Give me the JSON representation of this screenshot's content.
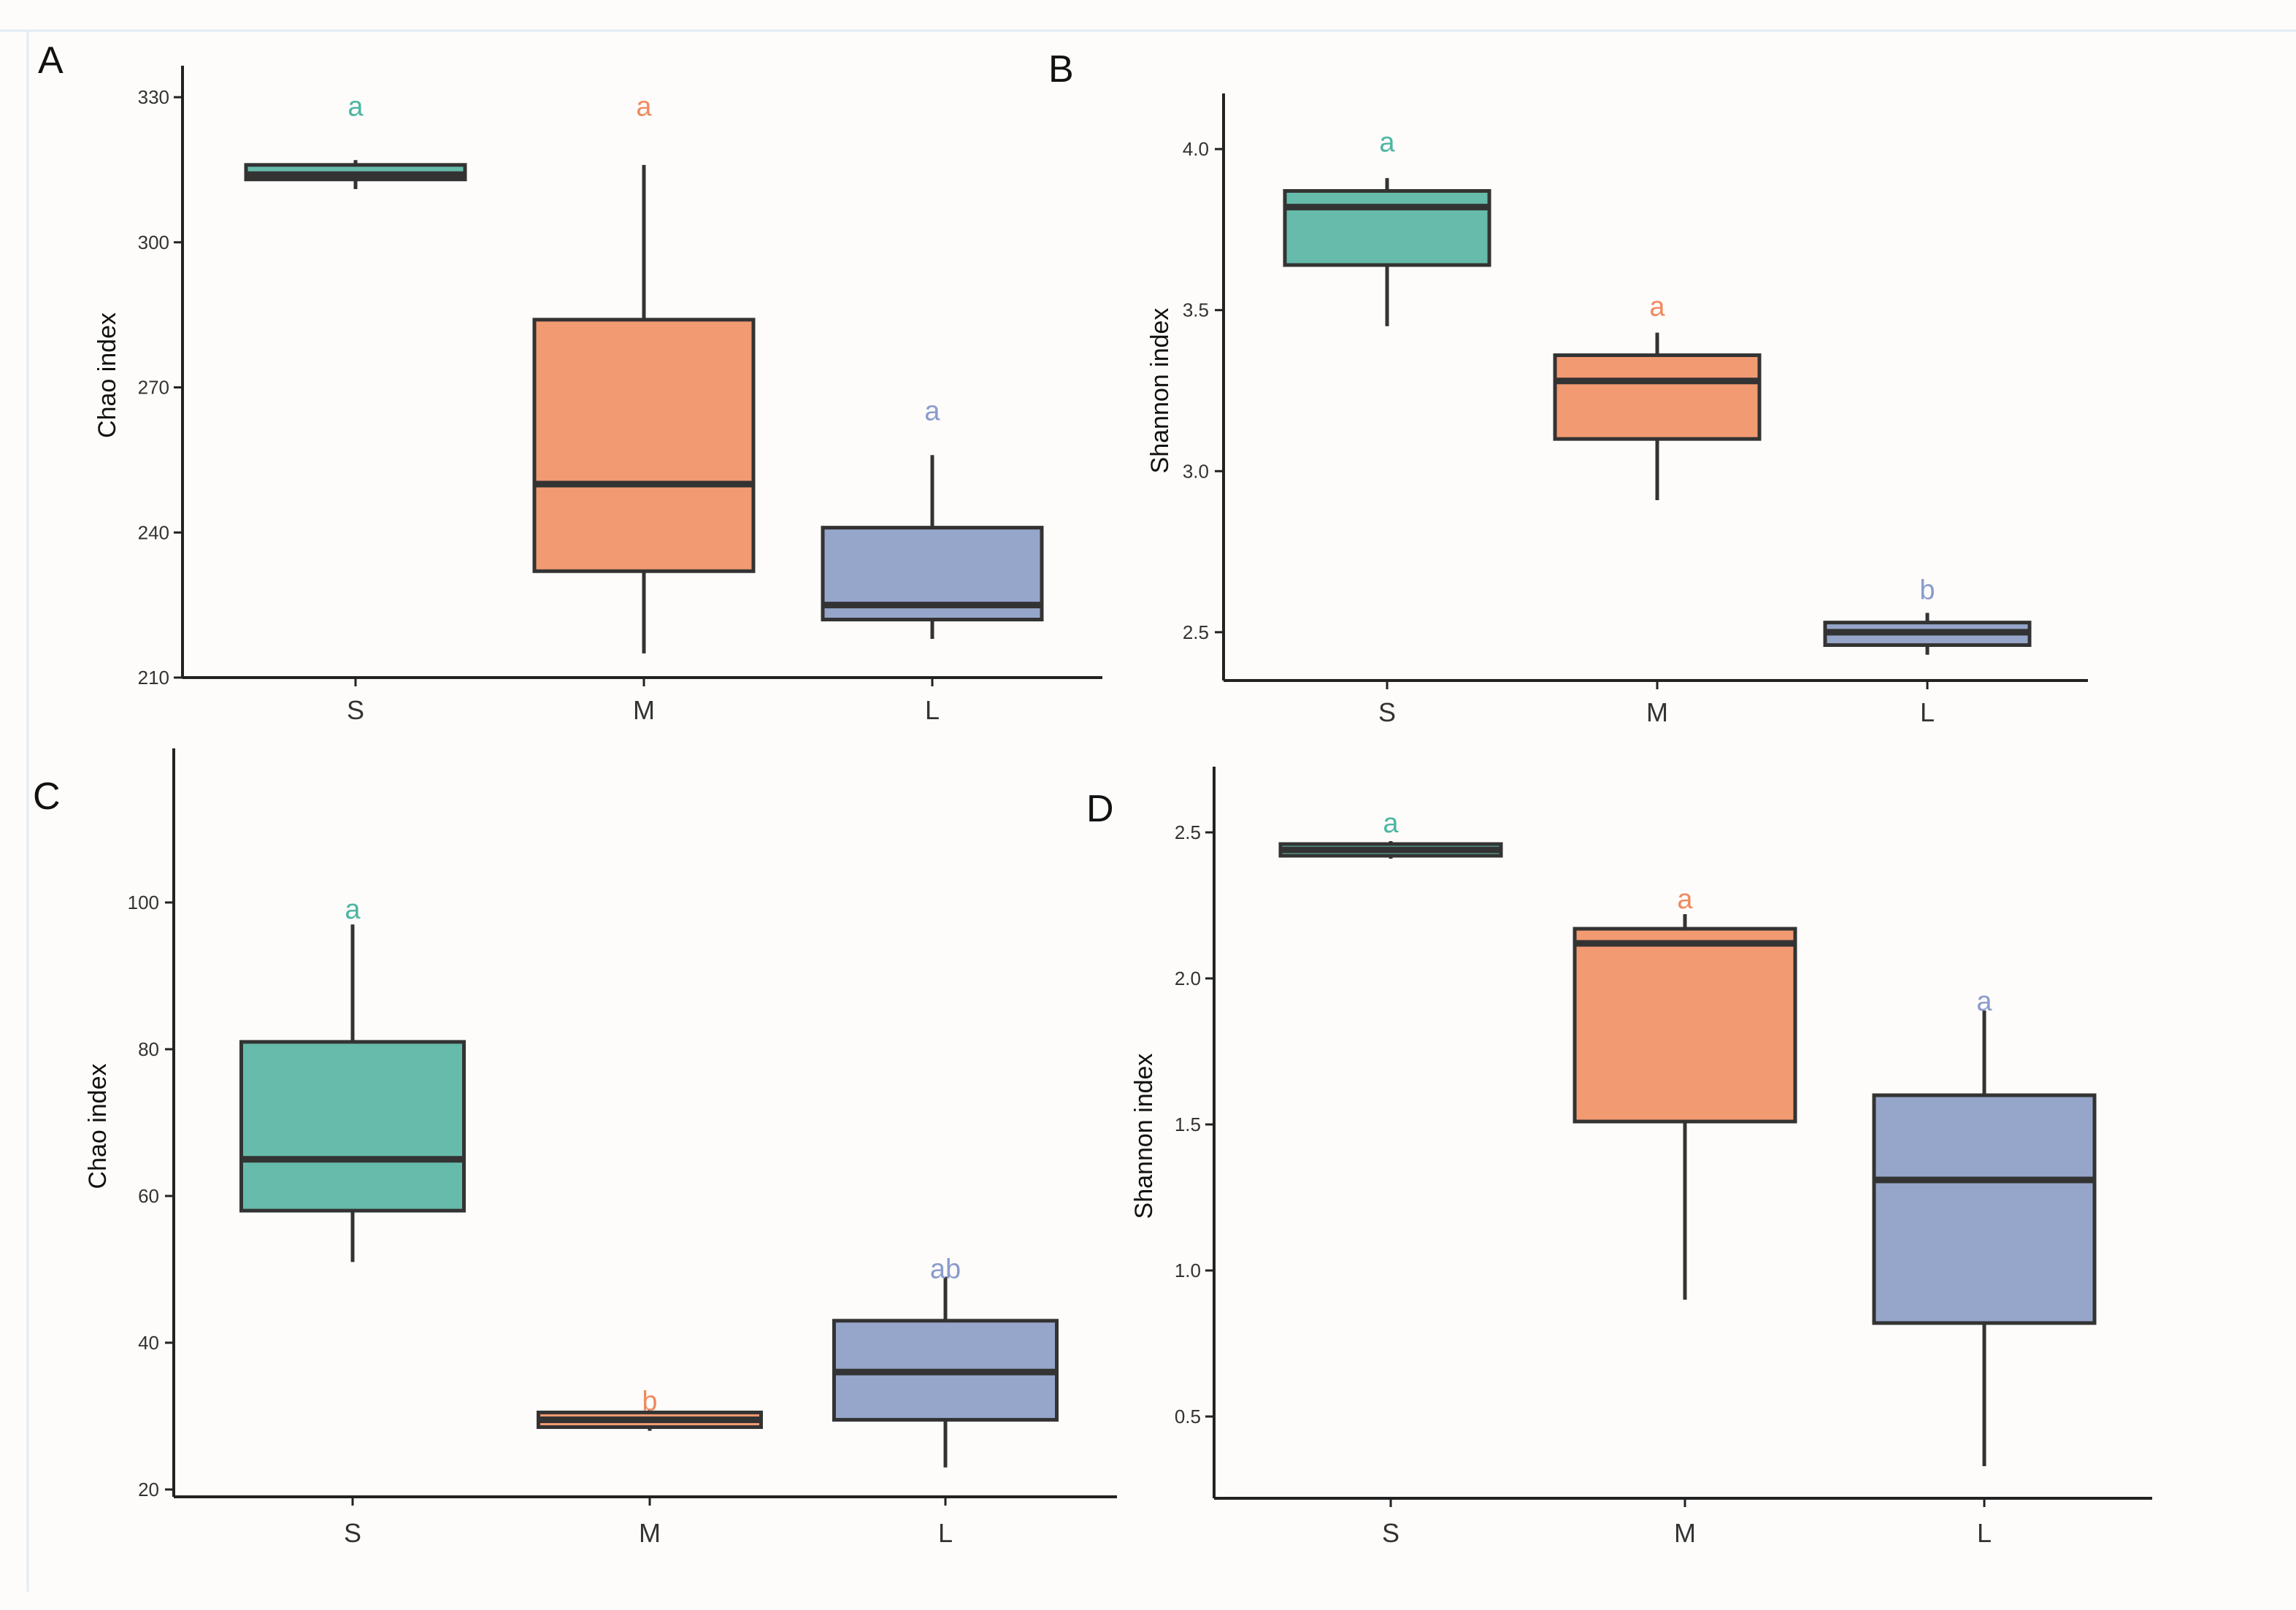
{
  "colors": {
    "background": "#fdfcfa",
    "border": "#e3eaf6",
    "S": "#66bbaa",
    "M": "#f29a72",
    "L": "#96a6ca",
    "S_text": "#4cb6a2",
    "M_text": "#f08a60",
    "L_text": "#8a9ccc"
  },
  "chart_data": [
    {
      "type": "box",
      "panel": "A",
      "ylabel": "Chao index",
      "xlabel": "",
      "ylim": [
        210,
        335
      ],
      "yticks": [
        210,
        240,
        270,
        300,
        330
      ],
      "categories": [
        "S",
        "M",
        "L"
      ],
      "boxes": [
        {
          "category": "S",
          "min": 311,
          "q1": 313,
          "median": 314,
          "q3": 316,
          "max": 317,
          "sig": "a",
          "sig_y": 328
        },
        {
          "category": "M",
          "min": 215,
          "q1": 232,
          "median": 250,
          "q3": 284,
          "max": 316,
          "sig": "a",
          "sig_y": 328
        },
        {
          "category": "L",
          "min": 218,
          "q1": 222,
          "median": 225,
          "q3": 241,
          "max": 256,
          "sig": "a",
          "sig_y": 265
        }
      ]
    },
    {
      "type": "box",
      "panel": "B",
      "ylabel": "Shannon index",
      "xlabel": "",
      "ylim": [
        2.35,
        4.15
      ],
      "yticks": [
        2.5,
        3.0,
        3.5,
        4.0
      ],
      "categories": [
        "S",
        "M",
        "L"
      ],
      "boxes": [
        {
          "category": "S",
          "min": 3.45,
          "q1": 3.64,
          "median": 3.82,
          "q3": 3.87,
          "max": 3.91,
          "sig": "a",
          "sig_y": 4.02
        },
        {
          "category": "M",
          "min": 2.91,
          "q1": 3.1,
          "median": 3.28,
          "q3": 3.36,
          "max": 3.43,
          "sig": "a",
          "sig_y": 3.51
        },
        {
          "category": "L",
          "min": 2.43,
          "q1": 2.46,
          "median": 2.5,
          "q3": 2.53,
          "max": 2.56,
          "sig": "b",
          "sig_y": 2.63
        }
      ]
    },
    {
      "type": "box",
      "panel": "C",
      "ylabel": "Chao index",
      "xlabel": "",
      "ylim": [
        19,
        120
      ],
      "yticks": [
        20,
        40,
        60,
        80,
        100
      ],
      "categories": [
        "S",
        "M",
        "L"
      ],
      "boxes": [
        {
          "category": "S",
          "min": 51,
          "q1": 58,
          "median": 65,
          "q3": 81,
          "max": 97,
          "sig": "a",
          "sig_y": 99
        },
        {
          "category": "M",
          "min": 28,
          "q1": 28.5,
          "median": 29.5,
          "q3": 30.5,
          "max": 31,
          "sig": "b",
          "sig_y": 32
        },
        {
          "category": "L",
          "min": 23,
          "q1": 29.5,
          "median": 36,
          "q3": 43,
          "max": 49,
          "sig": "ab",
          "sig_y": 50
        }
      ]
    },
    {
      "type": "box",
      "panel": "D",
      "ylabel": "Shannon index",
      "xlabel": "",
      "ylim": [
        0.22,
        2.7
      ],
      "yticks": [
        0.5,
        1.0,
        1.5,
        2.0,
        2.5
      ],
      "categories": [
        "S",
        "M",
        "L"
      ],
      "boxes": [
        {
          "category": "S",
          "min": 2.41,
          "q1": 2.42,
          "median": 2.44,
          "q3": 2.46,
          "max": 2.47,
          "sig": "a",
          "sig_y": 2.53
        },
        {
          "category": "M",
          "min": 0.9,
          "q1": 1.51,
          "median": 2.12,
          "q3": 2.17,
          "max": 2.22,
          "sig": "a",
          "sig_y": 2.27
        },
        {
          "category": "L",
          "min": 0.33,
          "q1": 0.82,
          "median": 1.31,
          "q3": 1.6,
          "max": 1.89,
          "sig": "a",
          "sig_y": 1.92
        }
      ]
    }
  ]
}
